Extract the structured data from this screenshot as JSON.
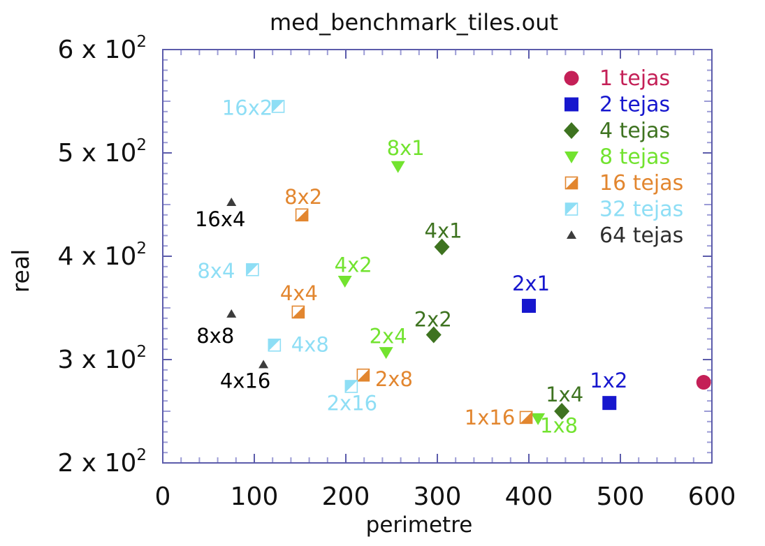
{
  "title": "med_benchmark_tiles.out",
  "axes": {
    "x": {
      "label": "perimetre",
      "tick_labels": [
        "0",
        "100",
        "200",
        "300",
        "400",
        "500",
        "600"
      ],
      "tick_values": [
        0,
        100,
        200,
        300,
        400,
        500,
        600
      ],
      "minor_step": 20,
      "min": 0,
      "max": 600
    },
    "y": {
      "label": "real",
      "tick_labels": [
        {
          "base": "2 x 10",
          "exp": "2"
        },
        {
          "base": "3 x 10",
          "exp": "2"
        },
        {
          "base": "4 x 10",
          "exp": "2"
        },
        {
          "base": "5 x 10",
          "exp": "2"
        },
        {
          "base": "6 x 10",
          "exp": "2"
        }
      ],
      "tick_values": [
        200,
        300,
        400,
        500,
        600
      ],
      "minor_step": 10,
      "medium_step": 50,
      "min": 200,
      "max": 600
    }
  },
  "legend": {
    "position": "top-right",
    "items": [
      "1 tejas",
      "2 tejas",
      "4 tejas",
      "8 tejas",
      "16 tejas",
      "32 tejas",
      "64 tejas"
    ]
  },
  "colors": {
    "axis": "#5C5CAB",
    "axis_minor": "#9C9CD6",
    "text": "#111111",
    "background": "#FFFFFF"
  },
  "chart_data": {
    "type": "scatter",
    "title": "med_benchmark_tiles.out",
    "xlabel": "perimetre",
    "ylabel": "real",
    "xlim": [
      0,
      600
    ],
    "ylim": [
      200,
      600
    ],
    "grid": false,
    "legend_position": "top-right",
    "series": [
      {
        "name": "1 tejas",
        "color": "#C42057",
        "marker": "circle",
        "label_color": "#C42057",
        "points": [
          {
            "label": "",
            "x": 591,
            "y": 278,
            "dx": 0,
            "dy": 0
          }
        ]
      },
      {
        "name": "2 tejas",
        "color": "#1717CE",
        "marker": "square",
        "label_color": "#1717CE",
        "points": [
          {
            "label": "2x1",
            "x": 400,
            "y": 352,
            "dx": 3,
            "dy": -32
          },
          {
            "label": "1x2",
            "x": 488,
            "y": 258,
            "dx": -1,
            "dy": -32
          }
        ]
      },
      {
        "name": "4 tejas",
        "color": "#3E7320",
        "marker": "diamond",
        "label_color": "#3E7320",
        "points": [
          {
            "label": "4x1",
            "x": 305,
            "y": 409,
            "dx": 2,
            "dy": -23
          },
          {
            "label": "2x2",
            "x": 296,
            "y": 324,
            "dx": -1,
            "dy": -22
          },
          {
            "label": "1x4",
            "x": 436,
            "y": 250,
            "dx": 4,
            "dy": -24
          }
        ]
      },
      {
        "name": "8 tejas",
        "color": "#72E32F",
        "marker": "triangle-down",
        "label_color": "#72E32F",
        "points": [
          {
            "label": "8x1",
            "x": 257,
            "y": 487,
            "dx": 11,
            "dy": -26
          },
          {
            "label": "4x2",
            "x": 199,
            "y": 376,
            "dx": 12,
            "dy": -23
          },
          {
            "label": "2x4",
            "x": 244,
            "y": 307,
            "dx": 3,
            "dy": -23
          },
          {
            "label": "1x8",
            "x": 410,
            "y": 243,
            "dx": 30,
            "dy": 10
          }
        ]
      },
      {
        "name": "16 tejas",
        "color": "#E2862F",
        "marker": "half-square-br",
        "label_color": "#E2862F",
        "points": [
          {
            "label": "8x2",
            "x": 152,
            "y": 440,
            "dx": 2,
            "dy": -26
          },
          {
            "label": "4x4",
            "x": 148,
            "y": 346,
            "dx": 1,
            "dy": -27
          },
          {
            "label": "2x8",
            "x": 219,
            "y": 285,
            "dx": 44,
            "dy": 6
          },
          {
            "label": "1x16",
            "x": 397,
            "y": 244,
            "dx": -52,
            "dy": 0
          }
        ]
      },
      {
        "name": "32 tejas",
        "color": "#8EDEF5",
        "marker": "half-square-tl",
        "label_color": "#8EDEF5",
        "points": [
          {
            "label": "16x2",
            "x": 126,
            "y": 545,
            "dx": -44,
            "dy": 2
          },
          {
            "label": "8x4",
            "x": 98,
            "y": 387,
            "dx": -52,
            "dy": 2
          },
          {
            "label": "4x8",
            "x": 122,
            "y": 314,
            "dx": 51,
            "dy": -1
          },
          {
            "label": "2x16",
            "x": 206,
            "y": 274,
            "dx": 1,
            "dy": 24
          }
        ]
      },
      {
        "name": "64 tejas",
        "color": "#3C3C3C",
        "marker": "triangle-up",
        "label_color": "#000000",
        "legend_text_color": "#2E2E2E",
        "points": [
          {
            "label": "16x4",
            "x": 75,
            "y": 452,
            "dx": -16,
            "dy": 24
          },
          {
            "label": "8x8",
            "x": 75,
            "y": 344,
            "dx": -23,
            "dy": 31
          },
          {
            "label": "4x16",
            "x": 110,
            "y": 295,
            "dx": -26,
            "dy": 23
          }
        ]
      }
    ]
  }
}
